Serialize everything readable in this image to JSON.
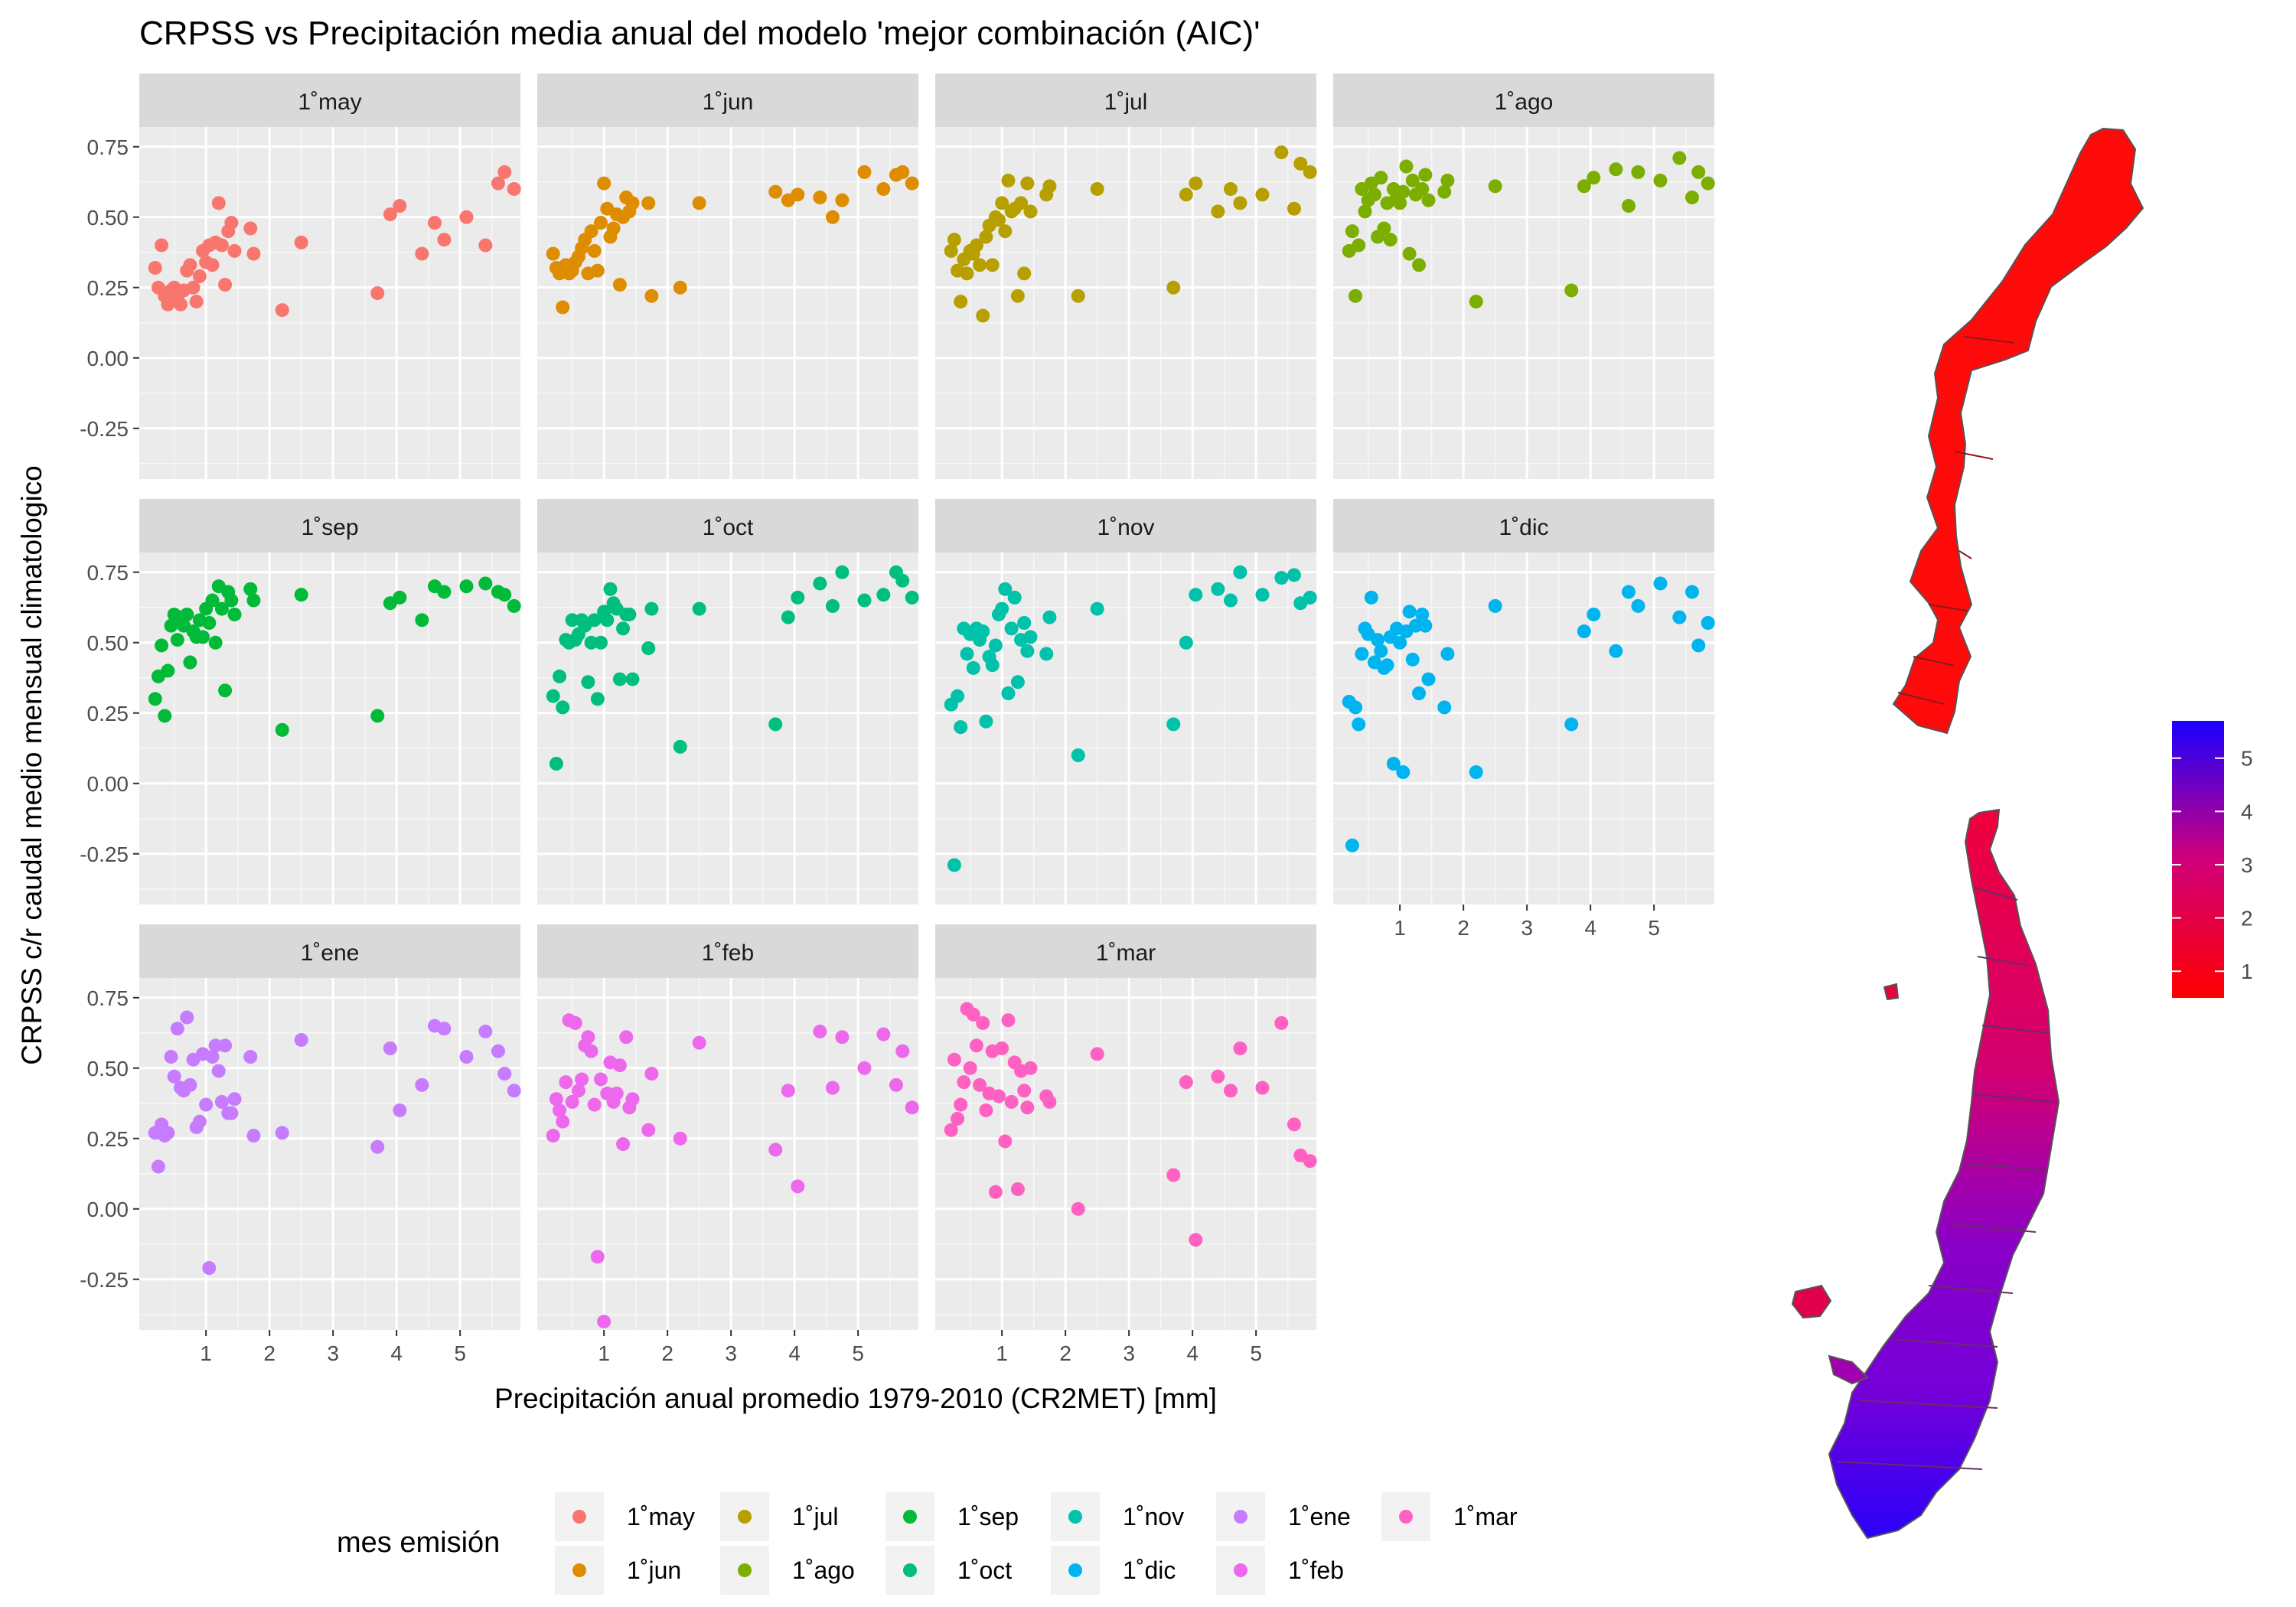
{
  "chart_data": {
    "type": "scatter",
    "title": "CRPSS vs Precipitación media anual del modelo 'mejor combinación (AIC)'",
    "xlabel": "Precipitación anual promedio 1979-2010 (CR2MET) [mm]",
    "ylabel": "CRPSS c/r caudal medio mensual climatologico",
    "xlim": [
      -0.05,
      5.95
    ],
    "ylim": [
      -0.43,
      0.82
    ],
    "x_ticks": [
      1,
      2,
      3,
      4,
      5
    ],
    "x_tick_labels": [
      "1",
      "2",
      "3",
      "4",
      "5"
    ],
    "y_ticks": [
      -0.25,
      0,
      0.25,
      0.5,
      0.75
    ],
    "y_tick_labels": [
      "-0.25",
      "0.00",
      "0.25",
      "0.50",
      "0.75"
    ],
    "grid": true,
    "legend": {
      "title": "mes emisión",
      "position": "bottom",
      "entries": [
        "1˚may",
        "1˚jun",
        "1˚jul",
        "1˚ago",
        "1˚sep",
        "1˚oct",
        "1˚nov",
        "1˚dic",
        "1˚ene",
        "1˚feb",
        "1˚mar"
      ]
    },
    "panels": [
      {
        "name": "1˚may",
        "color": "#F8766D",
        "x": [
          0.2,
          0.25,
          0.3,
          0.35,
          0.4,
          0.45,
          0.5,
          0.55,
          0.6,
          0.65,
          0.7,
          0.75,
          0.8,
          0.85,
          0.9,
          0.95,
          1.0,
          1.05,
          1.1,
          1.15,
          1.2,
          1.25,
          1.3,
          1.35,
          1.4,
          1.45,
          1.7,
          1.75,
          2.2,
          2.5,
          3.7,
          3.9,
          4.05,
          4.4,
          4.6,
          4.75,
          5.1,
          5.4,
          5.6,
          5.7,
          5.85
        ],
        "y": [
          0.32,
          0.25,
          0.4,
          0.22,
          0.19,
          0.24,
          0.25,
          0.21,
          0.19,
          0.24,
          0.31,
          0.33,
          0.25,
          0.2,
          0.29,
          0.38,
          0.34,
          0.4,
          0.33,
          0.41,
          0.55,
          0.4,
          0.26,
          0.45,
          0.48,
          0.38,
          0.46,
          0.37,
          0.17,
          0.41,
          0.23,
          0.51,
          0.54,
          0.37,
          0.48,
          0.42,
          0.5,
          0.4,
          0.62,
          0.66,
          0.6
        ]
      },
      {
        "name": "1˚jun",
        "color": "#DE8C00",
        "x": [
          0.2,
          0.25,
          0.3,
          0.35,
          0.4,
          0.45,
          0.5,
          0.55,
          0.6,
          0.65,
          0.7,
          0.75,
          0.8,
          0.85,
          0.9,
          0.95,
          1.0,
          1.05,
          1.1,
          1.15,
          1.2,
          1.25,
          1.3,
          1.35,
          1.4,
          1.45,
          1.7,
          1.75,
          2.2,
          2.5,
          3.7,
          3.9,
          4.05,
          4.4,
          4.6,
          4.75,
          5.1,
          5.4,
          5.6,
          5.7,
          5.85
        ],
        "y": [
          0.37,
          0.32,
          0.3,
          0.18,
          0.33,
          0.3,
          0.31,
          0.34,
          0.36,
          0.39,
          0.42,
          0.3,
          0.45,
          0.38,
          0.31,
          0.48,
          0.62,
          0.53,
          0.43,
          0.46,
          0.51,
          0.26,
          0.5,
          0.57,
          0.52,
          0.55,
          0.55,
          0.22,
          0.25,
          0.55,
          0.59,
          0.56,
          0.58,
          0.57,
          0.5,
          0.56,
          0.66,
          0.6,
          0.65,
          0.66,
          0.62
        ]
      },
      {
        "name": "1˚jul",
        "color": "#B79F00",
        "x": [
          0.2,
          0.25,
          0.3,
          0.35,
          0.4,
          0.45,
          0.5,
          0.55,
          0.6,
          0.65,
          0.7,
          0.75,
          0.8,
          0.85,
          0.9,
          0.95,
          1.0,
          1.05,
          1.1,
          1.15,
          1.2,
          1.25,
          1.3,
          1.35,
          1.4,
          1.45,
          1.7,
          1.75,
          2.2,
          2.5,
          3.7,
          3.9,
          4.05,
          4.4,
          4.6,
          4.75,
          5.1,
          5.4,
          5.6,
          5.7,
          5.85
        ],
        "y": [
          0.38,
          0.42,
          0.31,
          0.2,
          0.35,
          0.3,
          0.38,
          0.37,
          0.4,
          0.33,
          0.15,
          0.43,
          0.47,
          0.33,
          0.5,
          0.49,
          0.55,
          0.45,
          0.63,
          0.52,
          0.53,
          0.22,
          0.55,
          0.3,
          0.62,
          0.52,
          0.58,
          0.61,
          0.22,
          0.6,
          0.25,
          0.58,
          0.62,
          0.52,
          0.6,
          0.55,
          0.58,
          0.73,
          0.53,
          0.69,
          0.66
        ]
      },
      {
        "name": "1˚ago",
        "color": "#7CAE00",
        "x": [
          0.2,
          0.25,
          0.3,
          0.35,
          0.4,
          0.45,
          0.5,
          0.55,
          0.6,
          0.65,
          0.7,
          0.75,
          0.8,
          0.85,
          0.9,
          0.95,
          1.0,
          1.05,
          1.1,
          1.15,
          1.2,
          1.25,
          1.3,
          1.35,
          1.4,
          1.45,
          1.7,
          1.75,
          2.2,
          2.5,
          3.7,
          3.9,
          4.05,
          4.4,
          4.6,
          4.75,
          5.1,
          5.4,
          5.6,
          5.7,
          5.85
        ],
        "y": [
          0.38,
          0.45,
          0.22,
          0.4,
          0.6,
          0.52,
          0.56,
          0.62,
          0.58,
          0.43,
          0.64,
          0.46,
          0.55,
          0.42,
          0.6,
          0.57,
          0.55,
          0.59,
          0.68,
          0.37,
          0.63,
          0.58,
          0.33,
          0.6,
          0.65,
          0.56,
          0.59,
          0.63,
          0.2,
          0.61,
          0.24,
          0.61,
          0.64,
          0.67,
          0.54,
          0.66,
          0.63,
          0.71,
          0.57,
          0.66,
          0.62
        ]
      },
      {
        "name": "1˚sep",
        "color": "#00BA38",
        "x": [
          0.2,
          0.25,
          0.3,
          0.35,
          0.4,
          0.45,
          0.5,
          0.55,
          0.6,
          0.65,
          0.7,
          0.75,
          0.8,
          0.85,
          0.9,
          0.95,
          1.0,
          1.05,
          1.1,
          1.15,
          1.2,
          1.25,
          1.3,
          1.35,
          1.4,
          1.45,
          1.7,
          1.75,
          2.2,
          2.5,
          3.7,
          3.9,
          4.05,
          4.4,
          4.6,
          4.75,
          5.1,
          5.4,
          5.6,
          5.7,
          5.85
        ],
        "y": [
          0.3,
          0.38,
          0.49,
          0.24,
          0.4,
          0.56,
          0.6,
          0.51,
          0.59,
          0.56,
          0.6,
          0.43,
          0.54,
          0.52,
          0.58,
          0.52,
          0.62,
          0.57,
          0.65,
          0.5,
          0.7,
          0.62,
          0.33,
          0.68,
          0.65,
          0.6,
          0.69,
          0.65,
          0.19,
          0.67,
          0.24,
          0.64,
          0.66,
          0.58,
          0.7,
          0.68,
          0.7,
          0.71,
          0.68,
          0.67,
          0.63
        ]
      },
      {
        "name": "1˚oct",
        "color": "#00BF7D",
        "x": [
          0.2,
          0.25,
          0.3,
          0.35,
          0.4,
          0.45,
          0.5,
          0.55,
          0.6,
          0.65,
          0.7,
          0.75,
          0.8,
          0.85,
          0.9,
          0.95,
          1.0,
          1.05,
          1.1,
          1.15,
          1.2,
          1.25,
          1.3,
          1.35,
          1.4,
          1.45,
          1.7,
          1.75,
          2.2,
          2.5,
          3.7,
          3.9,
          4.05,
          4.4,
          4.6,
          4.75,
          5.1,
          5.4,
          5.6,
          5.7,
          5.85
        ],
        "y": [
          0.31,
          0.07,
          0.38,
          0.27,
          0.51,
          0.5,
          0.58,
          0.51,
          0.53,
          0.58,
          0.56,
          0.36,
          0.5,
          0.58,
          0.3,
          0.5,
          0.61,
          0.58,
          0.69,
          0.64,
          0.62,
          0.37,
          0.55,
          0.6,
          0.6,
          0.37,
          0.48,
          0.62,
          0.13,
          0.62,
          0.21,
          0.59,
          0.66,
          0.71,
          0.63,
          0.75,
          0.65,
          0.67,
          0.75,
          0.72,
          0.66
        ]
      },
      {
        "name": "1˚nov",
        "color": "#00C1A9",
        "x": [
          0.2,
          0.25,
          0.3,
          0.35,
          0.4,
          0.45,
          0.5,
          0.55,
          0.6,
          0.65,
          0.7,
          0.75,
          0.8,
          0.85,
          0.9,
          0.95,
          1.0,
          1.05,
          1.1,
          1.15,
          1.2,
          1.25,
          1.3,
          1.35,
          1.4,
          1.45,
          1.7,
          1.75,
          2.2,
          2.5,
          3.7,
          3.9,
          4.05,
          4.4,
          4.6,
          4.75,
          5.1,
          5.4,
          5.6,
          5.7,
          5.85
        ],
        "y": [
          0.28,
          -0.29,
          0.31,
          0.2,
          0.55,
          0.46,
          0.53,
          0.41,
          0.55,
          0.51,
          0.54,
          0.22,
          0.45,
          0.42,
          0.49,
          0.6,
          0.62,
          0.69,
          0.32,
          0.55,
          0.66,
          0.36,
          0.51,
          0.57,
          0.47,
          0.52,
          0.46,
          0.59,
          0.1,
          0.62,
          0.21,
          0.5,
          0.67,
          0.69,
          0.65,
          0.75,
          0.67,
          0.73,
          0.74,
          0.64,
          0.66
        ]
      },
      {
        "name": "1˚dic",
        "color": "#00B4F0",
        "x": [
          0.2,
          0.25,
          0.3,
          0.35,
          0.4,
          0.45,
          0.5,
          0.55,
          0.6,
          0.65,
          0.7,
          0.75,
          0.8,
          0.85,
          0.9,
          0.95,
          1.0,
          1.05,
          1.1,
          1.15,
          1.2,
          1.25,
          1.3,
          1.35,
          1.4,
          1.45,
          1.7,
          1.75,
          2.2,
          2.5,
          3.7,
          3.9,
          4.05,
          4.4,
          4.6,
          4.75,
          5.1,
          5.4,
          5.6,
          5.7,
          5.85
        ],
        "y": [
          0.29,
          -0.22,
          0.27,
          0.21,
          0.46,
          0.55,
          0.53,
          0.66,
          0.43,
          0.51,
          0.47,
          0.41,
          0.42,
          0.52,
          0.07,
          0.55,
          0.5,
          0.04,
          0.54,
          0.61,
          0.44,
          0.56,
          0.32,
          0.6,
          0.56,
          0.37,
          0.27,
          0.46,
          0.04,
          0.63,
          0.21,
          0.54,
          0.6,
          0.47,
          0.68,
          0.63,
          0.71,
          0.59,
          0.68,
          0.49,
          0.57
        ]
      },
      {
        "name": "1˚ene",
        "color": "#00A9FF",
        "hidden": true,
        "x": [],
        "y": []
      },
      {
        "name": "1˚ene",
        "color": "#C77CFF",
        "x": [
          0.2,
          0.25,
          0.3,
          0.35,
          0.4,
          0.45,
          0.5,
          0.55,
          0.6,
          0.65,
          0.7,
          0.75,
          0.8,
          0.85,
          0.9,
          0.95,
          1.0,
          1.05,
          1.1,
          1.15,
          1.2,
          1.25,
          1.3,
          1.35,
          1.4,
          1.45,
          1.7,
          1.75,
          2.2,
          2.5,
          3.7,
          3.9,
          4.05,
          4.4,
          4.6,
          4.75,
          5.1,
          5.4,
          5.6,
          5.7,
          5.85
        ],
        "y": [
          0.27,
          0.15,
          0.3,
          0.26,
          0.27,
          0.54,
          0.47,
          0.64,
          0.43,
          0.42,
          0.68,
          0.44,
          0.53,
          0.29,
          0.31,
          0.55,
          0.37,
          -0.21,
          0.54,
          0.58,
          0.49,
          0.38,
          0.58,
          0.34,
          0.34,
          0.39,
          0.54,
          0.26,
          0.27,
          0.6,
          0.22,
          0.57,
          0.35,
          0.44,
          0.65,
          0.64,
          0.54,
          0.63,
          0.56,
          0.48,
          0.42
        ]
      },
      {
        "name": "1˚feb",
        "color": "#ED68ED",
        "x": [
          0.2,
          0.25,
          0.3,
          0.35,
          0.4,
          0.45,
          0.5,
          0.55,
          0.6,
          0.65,
          0.7,
          0.75,
          0.8,
          0.85,
          0.9,
          0.95,
          1.0,
          1.05,
          1.1,
          1.15,
          1.2,
          1.25,
          1.3,
          1.35,
          1.4,
          1.45,
          1.7,
          1.75,
          2.2,
          2.5,
          3.7,
          3.9,
          4.05,
          4.4,
          4.6,
          4.75,
          5.1,
          5.4,
          5.6,
          5.7,
          5.85
        ],
        "y": [
          0.26,
          0.39,
          0.35,
          0.31,
          0.45,
          0.67,
          0.38,
          0.66,
          0.42,
          0.46,
          0.58,
          0.61,
          0.56,
          0.37,
          -0.17,
          0.46,
          -0.4,
          0.41,
          0.52,
          0.38,
          0.41,
          0.51,
          0.23,
          0.61,
          0.36,
          0.39,
          0.28,
          0.48,
          0.25,
          0.59,
          0.21,
          0.42,
          0.08,
          0.63,
          0.43,
          0.61,
          0.5,
          0.62,
          0.44,
          0.56,
          0.36
        ]
      },
      {
        "name": "1˚mar",
        "color": "#FF61C3",
        "x": [
          0.2,
          0.25,
          0.3,
          0.35,
          0.4,
          0.45,
          0.5,
          0.55,
          0.6,
          0.65,
          0.7,
          0.75,
          0.8,
          0.85,
          0.9,
          0.95,
          1.0,
          1.05,
          1.1,
          1.15,
          1.2,
          1.25,
          1.3,
          1.35,
          1.4,
          1.45,
          1.7,
          1.75,
          2.2,
          2.5,
          3.7,
          3.9,
          4.05,
          4.4,
          4.6,
          4.75,
          5.1,
          5.4,
          5.6,
          5.7,
          5.85
        ],
        "y": [
          0.28,
          0.53,
          0.32,
          0.37,
          0.45,
          0.71,
          0.5,
          0.69,
          0.58,
          0.44,
          0.66,
          0.35,
          0.41,
          0.56,
          0.06,
          0.4,
          0.57,
          0.24,
          0.67,
          0.38,
          0.52,
          0.07,
          0.49,
          0.42,
          0.36,
          0.5,
          0.4,
          0.38,
          0.0,
          0.55,
          0.12,
          0.45,
          -0.11,
          0.47,
          0.42,
          0.57,
          0.43,
          0.66,
          0.3,
          0.19,
          0.17
        ]
      }
    ]
  },
  "colorbar": {
    "tick_labels": [
      "1",
      "2",
      "3",
      "4",
      "5"
    ],
    "min": 0.5,
    "max": 5.7,
    "colors": [
      "#FF0000",
      "#D4006A",
      "#1A00FF"
    ]
  }
}
